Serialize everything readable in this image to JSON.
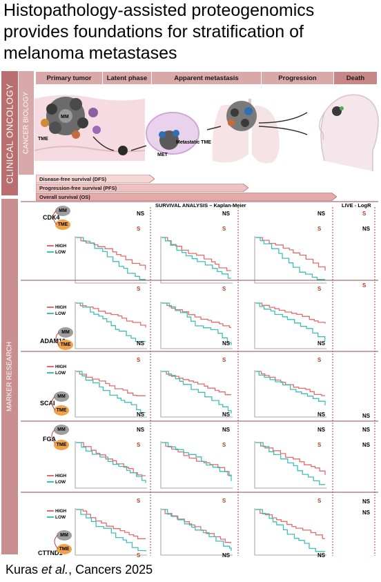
{
  "title": "Histopathology-assisted proteogenomics provides foundations for stratification of melanoma metastases",
  "citation": {
    "authors": "Kuras ",
    "etal": "et al.",
    "journal": ", Cancers 2025"
  },
  "sidebar": {
    "clinical_oncology": "CLINICAL ONCOLOGY",
    "cancer_biology": "CANCER BIOLOGY",
    "marker_research": "MARKER RESEARCH"
  },
  "stages": [
    "Primary tumor",
    "Latent phase",
    "Apparent metastasis",
    "Progression",
    "Death"
  ],
  "illustration": {
    "mm": "MM",
    "tme": "TME",
    "met": "MET",
    "metastatic_tme": "Metastatic TME"
  },
  "survival_bars": [
    "Disease-free survival (DFS)",
    "Progression-free survival (PFS)",
    "Overall survival (OS)"
  ],
  "headers": {
    "survival": "SURVIVAL  ANALYSIS – Kaplan-Meier",
    "logr": "LIVE - LogR"
  },
  "legend": {
    "high": "HIGH",
    "low": "LOW"
  },
  "node_labels": {
    "mm": "MM",
    "tme": "TME"
  },
  "colors": {
    "high": "#e46a6a",
    "low": "#3bbfb6",
    "significant": "#c0392b",
    "bar": "#d9a8a8",
    "sidebar": "#b96f6f"
  },
  "markers": [
    {
      "gene": "CDK4",
      "top_sig": [
        "NS",
        "NS",
        "NS"
      ],
      "sub_sig": [
        "S",
        "S",
        "S"
      ],
      "bottom_sig": [
        "",
        "",
        ""
      ],
      "logr": [
        "S",
        "NS"
      ]
    },
    {
      "gene": "ADAM10",
      "top_sig": [
        "S",
        "S",
        "S"
      ],
      "sub_sig": [
        "",
        "",
        ""
      ],
      "bottom_sig": [
        "NS",
        "NS",
        "NS"
      ],
      "logr": [
        "S"
      ]
    },
    {
      "gene": "SCAI",
      "top_sig": [
        "S",
        "S",
        "S"
      ],
      "sub_sig": [
        "",
        "",
        ""
      ],
      "bottom_sig": [
        "NS",
        "NS",
        "NS"
      ],
      "logr": [
        "NS"
      ]
    },
    {
      "gene": "FGA",
      "top_sig": [
        "NS",
        "NS",
        "NS"
      ],
      "sub_sig": [
        "S",
        "S",
        "S"
      ],
      "bottom_sig": [
        "",
        "",
        ""
      ],
      "logr": [
        "NS",
        "NS"
      ]
    },
    {
      "gene": "CTTND1",
      "top_sig": [
        "S",
        "S",
        "S"
      ],
      "sub_sig": [
        "",
        "",
        ""
      ],
      "bottom_sig": [
        "S",
        "NS",
        "NS"
      ],
      "logr": [
        "NS",
        "NS"
      ]
    }
  ]
}
